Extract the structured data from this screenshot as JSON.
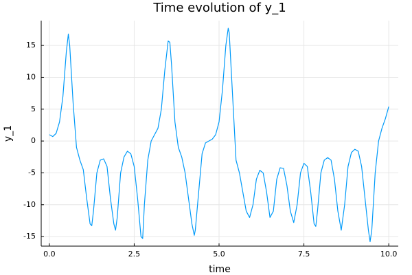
{
  "chart_data": {
    "type": "line",
    "title": "Time evolution of y_1",
    "x_label": "time",
    "y_label": "y_1",
    "x": [
      0,
      0.1,
      0.2,
      0.3,
      0.4,
      0.5,
      0.56,
      0.6,
      0.7,
      0.8,
      0.9,
      1.0,
      1.1,
      1.2,
      1.25,
      1.3,
      1.4,
      1.5,
      1.6,
      1.7,
      1.8,
      1.9,
      1.95,
      2.0,
      2.1,
      2.2,
      2.3,
      2.4,
      2.5,
      2.6,
      2.7,
      2.75,
      2.8,
      2.9,
      3.0,
      3.1,
      3.2,
      3.3,
      3.4,
      3.5,
      3.55,
      3.6,
      3.7,
      3.8,
      3.9,
      4.0,
      4.1,
      4.2,
      4.27,
      4.3,
      4.4,
      4.5,
      4.6,
      4.7,
      4.8,
      4.9,
      5.0,
      5.1,
      5.2,
      5.27,
      5.3,
      5.4,
      5.5,
      5.6,
      5.7,
      5.8,
      5.9,
      6.0,
      6.1,
      6.2,
      6.3,
      6.4,
      6.5,
      6.6,
      6.7,
      6.8,
      6.9,
      7.0,
      7.1,
      7.2,
      7.3,
      7.4,
      7.5,
      7.6,
      7.7,
      7.8,
      7.85,
      7.9,
      8.0,
      8.1,
      8.2,
      8.3,
      8.4,
      8.5,
      8.6,
      8.7,
      8.8,
      8.9,
      9.0,
      9.1,
      9.2,
      9.3,
      9.4,
      9.45,
      9.5,
      9.6,
      9.7,
      9.8,
      9.9,
      10.0
    ],
    "values": [
      1.0,
      0.7,
      1.2,
      3,
      7,
      14,
      16.8,
      15,
      6,
      -1,
      -3,
      -4.5,
      -9,
      -13,
      -13.3,
      -11,
      -5,
      -3,
      -2.8,
      -4,
      -9,
      -13,
      -14,
      -12,
      -5,
      -2.5,
      -1.6,
      -2,
      -4,
      -9,
      -15,
      -15.3,
      -10,
      -3,
      0,
      1,
      2,
      5,
      11,
      15.7,
      15.5,
      12,
      3,
      -1,
      -2.5,
      -5,
      -9,
      -13,
      -14.8,
      -14,
      -8,
      -2,
      -0.3,
      0,
      0.3,
      1,
      3,
      8,
      15,
      17.7,
      17,
      7,
      -3,
      -5,
      -8,
      -11,
      -12,
      -10,
      -6,
      -4.6,
      -5,
      -8,
      -12,
      -11,
      -6,
      -4.2,
      -4.3,
      -7,
      -11,
      -12.8,
      -10,
      -5,
      -3.5,
      -4,
      -8,
      -13,
      -13.4,
      -11,
      -5,
      -3,
      -2.6,
      -3,
      -6,
      -11,
      -14,
      -10,
      -4,
      -1.8,
      -1.3,
      -1.6,
      -4,
      -9,
      -14,
      -15.8,
      -14,
      -5,
      0,
      2,
      3.5,
      5.4
    ],
    "color": "#009af9",
    "xlim": [
      -0.24,
      10.28
    ],
    "ylim": [
      -16.5,
      18.9
    ],
    "xticks": [
      {
        "value": 0,
        "label": "0.0"
      },
      2.5,
      {
        "value": 5,
        "label": "5.0"
      },
      7.5,
      {
        "value": 10,
        "label": "10.0"
      }
    ],
    "yticks": [
      -15,
      -10,
      -5,
      0,
      5,
      10,
      15
    ],
    "grid": true
  }
}
